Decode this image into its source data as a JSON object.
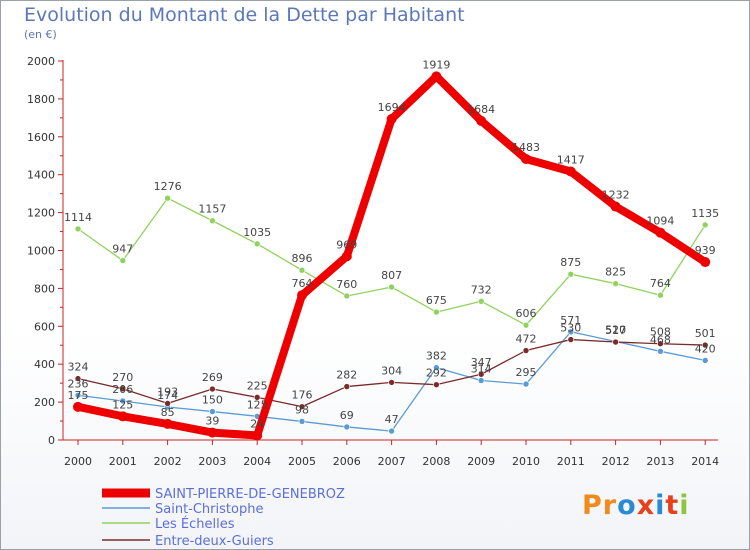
{
  "title": "Evolution du Montant de la Dette par Habitant",
  "subtitle": "(en €)",
  "logo_text": "Proxiti",
  "chart_data": {
    "type": "line",
    "title": "Evolution du Montant de la Dette par Habitant",
    "subtitle": "(en €)",
    "xlabel": "",
    "ylabel": "",
    "ylim": [
      0,
      2000
    ],
    "yticks": [
      0,
      200,
      400,
      600,
      800,
      1000,
      1200,
      1400,
      1600,
      1800,
      2000
    ],
    "grid": false,
    "legend_position": "bottom-left",
    "categories": [
      "2000",
      "2001",
      "2002",
      "2003",
      "2004",
      "2005",
      "2006",
      "2007",
      "2008",
      "2009",
      "2010",
      "2011",
      "2012",
      "2013",
      "2014"
    ],
    "series": [
      {
        "name": "SAINT-PIERRE-DE-GENEBROZ",
        "color": "#ee0000",
        "bold": true,
        "values": [
          175,
          125,
          85,
          39,
          24,
          764,
          969,
          1694,
          1919,
          1684,
          1483,
          1417,
          1232,
          1094,
          939
        ],
        "labels": [
          "175",
          "125",
          "85",
          "39",
          "24",
          "764",
          "969",
          "1694",
          "1919",
          "1684",
          "1483",
          "1417",
          "1232",
          "1094",
          "939"
        ]
      },
      {
        "name": "Saint-Christophe",
        "color": "#5b9bd5",
        "values": [
          236,
          206,
          174,
          150,
          125,
          98,
          69,
          47,
          382,
          314,
          295,
          571,
          520,
          468,
          420
        ],
        "labels": [
          "236",
          "206",
          "174",
          "150",
          "125",
          "98",
          "69",
          "47",
          "382",
          "314",
          "295",
          "571",
          "520",
          "468",
          "420"
        ]
      },
      {
        "name": "Les Échelles",
        "color": "#8fd35e",
        "values": [
          1114,
          947,
          1276,
          1157,
          1035,
          896,
          760,
          807,
          675,
          732,
          606,
          875,
          825,
          764,
          1135
        ],
        "labels": [
          "1114",
          "947",
          "1276",
          "1157",
          "1035",
          "896",
          "760",
          "807",
          "675",
          "732",
          "606",
          "875",
          "825",
          "764",
          "1135"
        ]
      },
      {
        "name": "Entre-deux-Guiers",
        "color": "#7a2b2b",
        "values": [
          324,
          270,
          193,
          269,
          225,
          176,
          282,
          304,
          292,
          347,
          472,
          530,
          517,
          508,
          501
        ],
        "labels": [
          "324",
          "270",
          "193",
          "269",
          "225",
          "176",
          "282",
          "304",
          "292",
          "347",
          "472",
          "530",
          "517",
          "508",
          "501"
        ]
      }
    ]
  }
}
